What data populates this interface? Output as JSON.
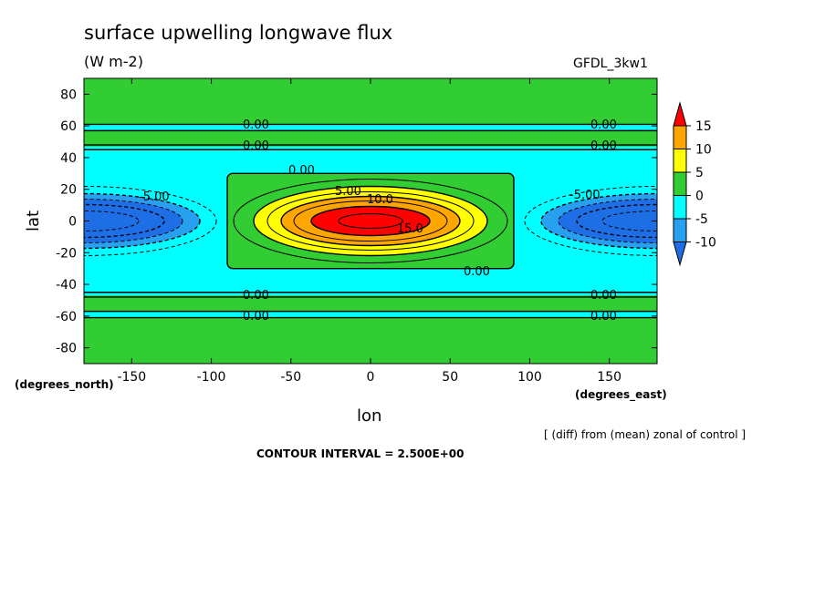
{
  "chart_data": {
    "type": "contour",
    "title": "surface upwelling longwave flux",
    "units": "(W m-2)",
    "dataset": "GFDL_3kw1",
    "xlabel": "lon",
    "ylabel": "lat",
    "x_units": "(degrees_east)",
    "y_units": "(degrees_north)",
    "xlim": [
      -180,
      180
    ],
    "ylim": [
      -90,
      90
    ],
    "x_ticks": [
      -150,
      -100,
      -50,
      0,
      50,
      100,
      150
    ],
    "y_ticks": [
      80,
      60,
      40,
      20,
      0,
      -20,
      -40,
      -60,
      -80
    ],
    "x_tick_labels": [
      "-150",
      "-100",
      "-50",
      "0",
      "50",
      "100",
      "150"
    ],
    "y_tick_labels": [
      "80",
      "60",
      "40",
      "20",
      "0",
      "-20",
      "-40",
      "-60",
      "-80"
    ],
    "color_levels": [
      -10,
      -5,
      0,
      5,
      10,
      15
    ],
    "colorbar_labels": [
      "15",
      "10",
      "5",
      "0",
      "-5",
      "-10"
    ],
    "colors": {
      "below_-10": "#1e6ee6",
      "-10_to_-5": "#28a0f0",
      "-5_to_0": "#00ffff",
      "0_to_5": "#32cd32",
      "5_to_10": "#ffff00",
      "10_to_15": "#ffa500",
      "above_15": "#ff0000"
    },
    "features": {
      "warm_center": {
        "lon": 0,
        "lat": 0,
        "max": 16
      },
      "cold_centers": [
        {
          "lon": -180,
          "lat": 0,
          "min": -12
        },
        {
          "lon": 180,
          "lat": 0,
          "min": -12
        }
      ],
      "zero_box": {
        "lon": [
          -90,
          90
        ],
        "lat": [
          -30,
          30
        ]
      }
    },
    "contour_labels": [
      "0.00",
      "5.00",
      "10.0",
      "15.0",
      "-5.00"
    ],
    "contour_interval_text": "CONTOUR INTERVAL = 2.500E+00",
    "note": "[ (diff) from (mean) zonal of control ]"
  }
}
